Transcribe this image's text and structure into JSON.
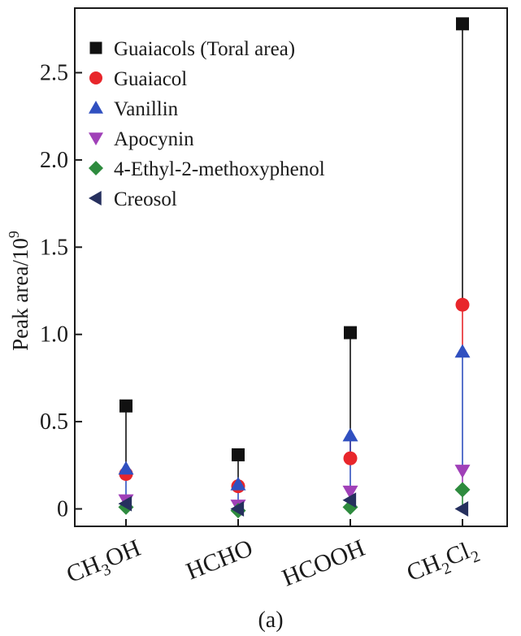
{
  "chart_data": {
    "type": "scatter",
    "ylabel": "Peak area/10",
    "ylabel_exponent": "9",
    "caption": "(a)",
    "ylim": [
      -0.1,
      2.87
    ],
    "yticks": [
      "0",
      "0.5",
      "1.0",
      "1.5",
      "2.0",
      "2.5"
    ],
    "ytick_values": [
      0,
      0.5,
      1.0,
      1.5,
      2.0,
      2.5
    ],
    "categories": [
      {
        "base": "CH",
        "sub": "3",
        "rest": "OH",
        "rest_sub": ""
      },
      {
        "base": "HCHO",
        "sub": "",
        "rest": "",
        "rest_sub": ""
      },
      {
        "base": "HCOOH",
        "sub": "",
        "rest": "",
        "rest_sub": ""
      },
      {
        "base": "CH",
        "sub": "2",
        "rest": "Cl",
        "rest_sub": "2"
      }
    ],
    "legend_position": "top-left",
    "series": [
      {
        "name": "Guaiacols (Toral area)",
        "marker": "square",
        "color": "#111111",
        "line_color": "#111111",
        "values": [
          0.59,
          0.31,
          1.01,
          2.78
        ]
      },
      {
        "name": "Guaiacol",
        "marker": "circle",
        "color": "#e8262b",
        "line_color": "#e8262b",
        "values": [
          0.2,
          0.13,
          0.29,
          1.17
        ]
      },
      {
        "name": "Vanillin",
        "marker": "triangle-up",
        "color": "#3050c0",
        "line_color": "#3050c0",
        "values": [
          0.23,
          0.14,
          0.42,
          0.9
        ]
      },
      {
        "name": "Apocynin",
        "marker": "triangle-down",
        "color": "#a040b8",
        "line_color": "#a040b8",
        "values": [
          0.05,
          0.02,
          0.1,
          0.22
        ]
      },
      {
        "name": "4-Ethyl-2-methoxyphenol",
        "marker": "diamond",
        "color": "#2e8b3e",
        "line_color": "#2e8b3e",
        "values": [
          0.01,
          -0.01,
          0.01,
          0.11
        ]
      },
      {
        "name": "Creosol",
        "marker": "triangle-left",
        "color": "#26305e",
        "line_color": "#26305e",
        "values": [
          0.03,
          0.0,
          0.05,
          0.0
        ]
      }
    ]
  }
}
